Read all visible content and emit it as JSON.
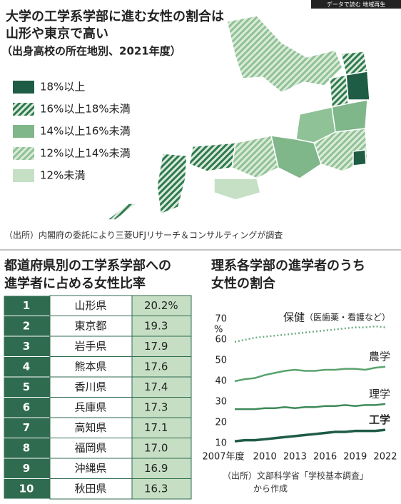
{
  "header": {
    "tag": "データで読む 地域再生"
  },
  "map": {
    "title": [
      "大学の工学系学部に進む女性の割合は",
      "山形や東京で高い"
    ],
    "subtitle": "（出身高校の所在地別、2021年度）",
    "legend": [
      {
        "label": "18%以上",
        "color": "#1f5c45",
        "hatch": false
      },
      {
        "label": "16%以上18%未満",
        "color": "#2f7a52",
        "hatch": true
      },
      {
        "label": "14%以上16%未満",
        "color": "#7fb68a",
        "hatch": false
      },
      {
        "label": "12%以上14%未満",
        "color": "#8fc296",
        "hatch": true
      },
      {
        "label": "12%未満",
        "color": "#c5e0c4",
        "hatch": false
      }
    ],
    "source": "（出所）内閣府の委託により三菱UFJリサーチ＆コンサルティングが調査"
  },
  "table": {
    "title": [
      "都道府県別の工学系学部への",
      "進学者に占める女性比率"
    ],
    "rows": [
      [
        "1",
        "山形県",
        "20.2%"
      ],
      [
        "2",
        "東京都",
        "19.3"
      ],
      [
        "3",
        "岩手県",
        "17.9"
      ],
      [
        "4",
        "熊本県",
        "17.6"
      ],
      [
        "5",
        "香川県",
        "17.4"
      ],
      [
        "6",
        "兵庫県",
        "17.3"
      ],
      [
        "7",
        "高知県",
        "17.1"
      ],
      [
        "8",
        "福岡県",
        "17.0"
      ],
      [
        "9",
        "沖縄県",
        "16.9"
      ],
      [
        "10",
        "秋田県",
        "16.3"
      ]
    ]
  },
  "chart_data": {
    "type": "line",
    "title": [
      "理系各学部の進学者のうち",
      "女性の割合"
    ],
    "x": [
      2007,
      2008,
      2009,
      2010,
      2011,
      2012,
      2013,
      2014,
      2015,
      2016,
      2017,
      2018,
      2019,
      2020,
      2021,
      2022
    ],
    "series": [
      {
        "name": "保健",
        "note": "（医歯薬・看護など）",
        "color": "#6fae7f",
        "line_style": "dotted",
        "values": [
          59,
          60,
          61,
          61.5,
          62,
          62.5,
          63,
          63.5,
          64,
          64.5,
          65,
          65.5,
          66,
          66,
          66.5,
          66
        ]
      },
      {
        "name": "農学",
        "color": "#5aa36e",
        "line_style": "solid",
        "values": [
          40,
          41,
          41.5,
          43,
          44,
          45,
          45.5,
          45,
          45,
          45.5,
          45.5,
          46,
          46,
          45.5,
          46.5,
          47
        ]
      },
      {
        "name": "理学",
        "color": "#3e8a5a",
        "line_style": "solid",
        "values": [
          26.5,
          26.5,
          26.5,
          27,
          27,
          27.5,
          27,
          27.5,
          27.5,
          28,
          28,
          28.5,
          28,
          28.5,
          28.5,
          29
        ]
      },
      {
        "name": "工学",
        "color": "#1f5c45",
        "line_style": "solid",
        "values": [
          11,
          11.5,
          11.5,
          12,
          12.5,
          13,
          13.5,
          14,
          14.5,
          15,
          15.5,
          15.5,
          16,
          16,
          16,
          16.5
        ]
      }
    ],
    "xlim": [
      2006.5,
      2022.5
    ],
    "xticks": [
      {
        "value": 2007,
        "label": "2007年度"
      },
      2010,
      2013,
      2016,
      2019,
      2022
    ],
    "ylim": [
      10,
      70
    ],
    "yticks": [
      10,
      20,
      30,
      40,
      50,
      60,
      70
    ],
    "y_unit": "%",
    "source": [
      "（出所）文部科学省「学校基本調査」",
      "から作成"
    ]
  }
}
